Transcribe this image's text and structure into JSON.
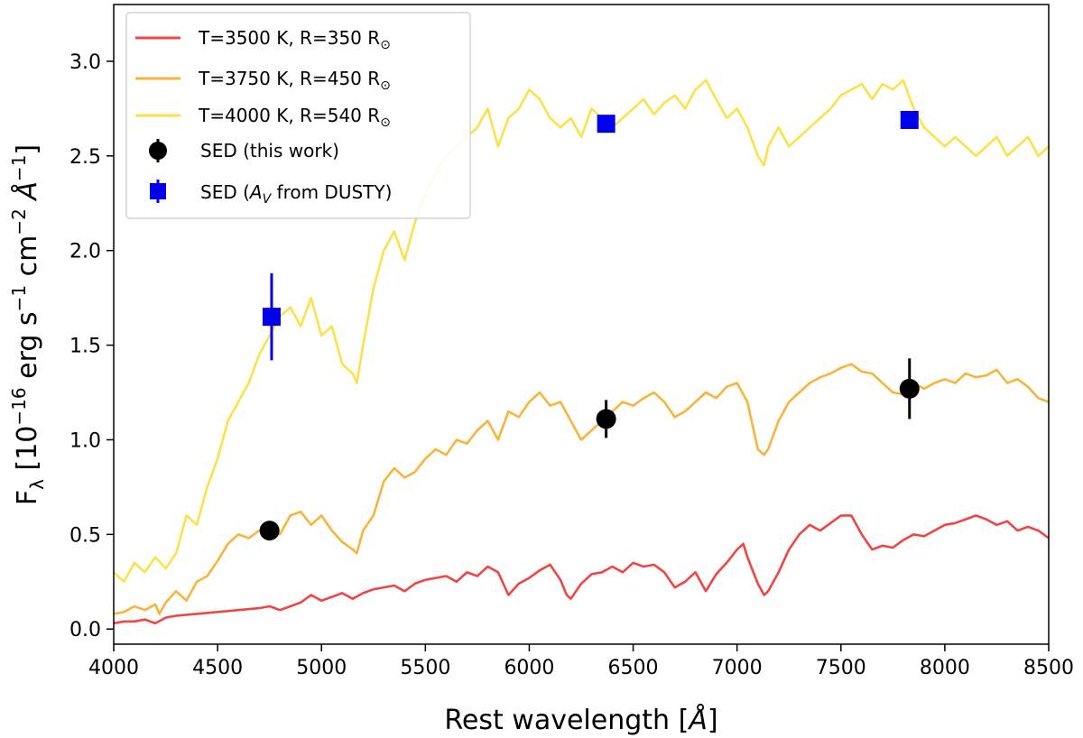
{
  "chart_data": {
    "type": "line",
    "xlabel": "Rest wavelength [Å]",
    "ylabel": "F_λ [10^-16 erg s^-1 cm^-2 Å^-1]",
    "xlim": [
      4000,
      8500
    ],
    "ylim": [
      -0.08,
      3.3
    ],
    "xticks": [
      4000,
      4500,
      5000,
      5500,
      6000,
      6500,
      7000,
      7500,
      8000,
      8500
    ],
    "xtick_labels": [
      "4000",
      "4500",
      "5000",
      "5500",
      "6000",
      "6500",
      "7000",
      "7500",
      "8000",
      "8500"
    ],
    "yticks": [
      0.0,
      0.5,
      1.0,
      1.5,
      2.0,
      2.5,
      3.0
    ],
    "ytick_labels": [
      "0.0",
      "0.5",
      "1.0",
      "1.5",
      "2.0",
      "2.5",
      "3.0"
    ],
    "grid": false,
    "legend_position": "top-left",
    "series": [
      {
        "name": "T=3500 K, R=350 R⊙",
        "color": "#f04545",
        "x": [
          4000,
          4050,
          4100,
          4150,
          4200,
          4250,
          4300,
          4400,
          4500,
          4600,
          4700,
          4750,
          4800,
          4850,
          4900,
          4950,
          5000,
          5050,
          5100,
          5150,
          5200,
          5250,
          5300,
          5350,
          5400,
          5450,
          5500,
          5550,
          5600,
          5650,
          5700,
          5750,
          5800,
          5850,
          5900,
          5950,
          6000,
          6050,
          6100,
          6150,
          6180,
          6200,
          6250,
          6300,
          6350,
          6400,
          6450,
          6500,
          6550,
          6600,
          6650,
          6700,
          6750,
          6800,
          6850,
          6900,
          6950,
          7000,
          7030,
          7050,
          7100,
          7130,
          7150,
          7200,
          7250,
          7300,
          7350,
          7400,
          7450,
          7500,
          7550,
          7600,
          7650,
          7700,
          7750,
          7800,
          7850,
          7900,
          7950,
          8000,
          8050,
          8100,
          8150,
          8200,
          8250,
          8300,
          8350,
          8400,
          8450,
          8500
        ],
        "values": [
          0.03,
          0.04,
          0.04,
          0.05,
          0.03,
          0.06,
          0.07,
          0.08,
          0.09,
          0.1,
          0.11,
          0.12,
          0.1,
          0.12,
          0.14,
          0.18,
          0.15,
          0.17,
          0.19,
          0.16,
          0.19,
          0.21,
          0.22,
          0.23,
          0.2,
          0.24,
          0.26,
          0.27,
          0.28,
          0.25,
          0.3,
          0.28,
          0.33,
          0.3,
          0.18,
          0.24,
          0.27,
          0.31,
          0.34,
          0.26,
          0.18,
          0.16,
          0.24,
          0.29,
          0.3,
          0.33,
          0.3,
          0.35,
          0.33,
          0.34,
          0.3,
          0.22,
          0.25,
          0.3,
          0.2,
          0.29,
          0.35,
          0.42,
          0.45,
          0.38,
          0.24,
          0.18,
          0.2,
          0.3,
          0.42,
          0.5,
          0.55,
          0.52,
          0.56,
          0.6,
          0.6,
          0.5,
          0.42,
          0.44,
          0.43,
          0.47,
          0.5,
          0.49,
          0.52,
          0.55,
          0.56,
          0.58,
          0.6,
          0.58,
          0.55,
          0.57,
          0.52,
          0.54,
          0.52,
          0.48
        ]
      },
      {
        "name": "T=3750 K, R=450 R⊙",
        "color": "#f9b43c",
        "x": [
          4000,
          4050,
          4100,
          4150,
          4200,
          4220,
          4250,
          4300,
          4350,
          4400,
          4450,
          4500,
          4550,
          4600,
          4650,
          4700,
          4750,
          4800,
          4850,
          4900,
          4950,
          5000,
          5050,
          5100,
          5150,
          5170,
          5200,
          5250,
          5300,
          5350,
          5400,
          5450,
          5500,
          5550,
          5600,
          5650,
          5700,
          5750,
          5800,
          5850,
          5900,
          5950,
          6000,
          6050,
          6100,
          6150,
          6200,
          6250,
          6300,
          6350,
          6400,
          6450,
          6500,
          6550,
          6600,
          6650,
          6700,
          6750,
          6800,
          6850,
          6900,
          6950,
          7000,
          7050,
          7080,
          7100,
          7130,
          7150,
          7200,
          7250,
          7300,
          7350,
          7400,
          7450,
          7500,
          7550,
          7600,
          7650,
          7700,
          7750,
          7800,
          7850,
          7900,
          7950,
          8000,
          8050,
          8100,
          8150,
          8200,
          8250,
          8300,
          8350,
          8400,
          8450,
          8500
        ],
        "values": [
          0.08,
          0.09,
          0.12,
          0.1,
          0.13,
          0.08,
          0.14,
          0.2,
          0.15,
          0.25,
          0.28,
          0.36,
          0.45,
          0.5,
          0.48,
          0.52,
          0.53,
          0.5,
          0.6,
          0.62,
          0.55,
          0.6,
          0.52,
          0.46,
          0.42,
          0.4,
          0.52,
          0.6,
          0.78,
          0.85,
          0.8,
          0.83,
          0.9,
          0.95,
          0.92,
          1.0,
          0.98,
          1.05,
          1.1,
          1.0,
          1.15,
          1.12,
          1.2,
          1.25,
          1.18,
          1.2,
          1.1,
          1.0,
          1.05,
          1.1,
          1.15,
          1.2,
          1.18,
          1.22,
          1.25,
          1.2,
          1.12,
          1.15,
          1.2,
          1.25,
          1.22,
          1.28,
          1.3,
          1.2,
          1.05,
          0.95,
          0.92,
          0.95,
          1.1,
          1.2,
          1.25,
          1.3,
          1.33,
          1.35,
          1.38,
          1.4,
          1.36,
          1.35,
          1.3,
          1.25,
          1.24,
          1.3,
          1.27,
          1.3,
          1.32,
          1.3,
          1.35,
          1.33,
          1.34,
          1.37,
          1.3,
          1.32,
          1.28,
          1.22,
          1.2
        ]
      },
      {
        "name": "T=4000 K, R=540 R⊙",
        "color": "#fde149",
        "x": [
          4000,
          4050,
          4100,
          4150,
          4200,
          4250,
          4300,
          4350,
          4400,
          4450,
          4500,
          4550,
          4600,
          4650,
          4700,
          4750,
          4800,
          4850,
          4900,
          4950,
          5000,
          5050,
          5100,
          5150,
          5170,
          5200,
          5250,
          5300,
          5350,
          5400,
          5450,
          5500,
          5550,
          5600,
          5650,
          5700,
          5750,
          5800,
          5850,
          5900,
          5950,
          6000,
          6050,
          6100,
          6150,
          6200,
          6250,
          6300,
          6350,
          6400,
          6450,
          6500,
          6550,
          6600,
          6650,
          6700,
          6750,
          6800,
          6850,
          6900,
          6950,
          7000,
          7050,
          7100,
          7130,
          7150,
          7200,
          7250,
          7300,
          7350,
          7400,
          7450,
          7500,
          7550,
          7600,
          7650,
          7700,
          7750,
          7800,
          7850,
          7900,
          7950,
          8000,
          8050,
          8100,
          8150,
          8200,
          8250,
          8300,
          8350,
          8400,
          8450,
          8500
        ],
        "values": [
          0.3,
          0.25,
          0.35,
          0.3,
          0.38,
          0.32,
          0.4,
          0.6,
          0.55,
          0.75,
          0.9,
          1.1,
          1.2,
          1.3,
          1.45,
          1.55,
          1.65,
          1.7,
          1.6,
          1.75,
          1.55,
          1.6,
          1.4,
          1.35,
          1.3,
          1.5,
          1.8,
          2.0,
          2.1,
          1.95,
          2.15,
          2.3,
          2.4,
          2.5,
          2.55,
          2.6,
          2.65,
          2.75,
          2.55,
          2.7,
          2.75,
          2.85,
          2.8,
          2.7,
          2.65,
          2.7,
          2.6,
          2.75,
          2.7,
          2.65,
          2.7,
          2.75,
          2.8,
          2.72,
          2.78,
          2.82,
          2.75,
          2.85,
          2.9,
          2.8,
          2.7,
          2.75,
          2.65,
          2.5,
          2.45,
          2.55,
          2.65,
          2.55,
          2.6,
          2.65,
          2.7,
          2.75,
          2.82,
          2.85,
          2.88,
          2.8,
          2.88,
          2.85,
          2.9,
          2.75,
          2.65,
          2.6,
          2.55,
          2.6,
          2.55,
          2.5,
          2.55,
          2.6,
          2.5,
          2.55,
          2.6,
          2.5,
          2.55
        ]
      }
    ],
    "markers": [
      {
        "name": "SED (this work)",
        "shape": "circle",
        "color": "#000000",
        "points": [
          {
            "x": 4750,
            "y": 0.52,
            "yerr": 0.0
          },
          {
            "x": 6370,
            "y": 1.11,
            "yerr": 0.1
          },
          {
            "x": 7830,
            "y": 1.27,
            "yerr": 0.16
          }
        ]
      },
      {
        "name": "SED (A_V from DUSTY)",
        "shape": "square",
        "color": "#0000ee",
        "points": [
          {
            "x": 4760,
            "y": 1.65,
            "yerr": 0.23
          },
          {
            "x": 6370,
            "y": 2.67,
            "yerr": 0.0
          },
          {
            "x": 7830,
            "y": 2.69,
            "yerr": 0.0
          }
        ]
      }
    ]
  }
}
